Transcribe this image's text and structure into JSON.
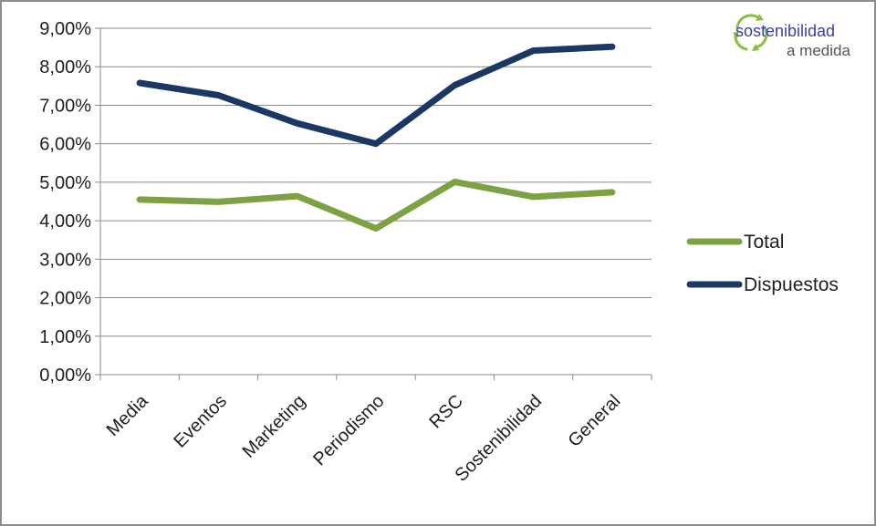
{
  "chart_data": {
    "type": "line",
    "title": "",
    "xlabel": "",
    "ylabel": "",
    "categories": [
      "Media",
      "Eventos",
      "Marketing",
      "Periodismo",
      "RSC",
      "Sostenibilidad",
      "General"
    ],
    "ylim": [
      0,
      0.09
    ],
    "yticks": [
      0,
      0.01,
      0.02,
      0.03,
      0.04,
      0.05,
      0.06,
      0.07,
      0.08,
      0.09
    ],
    "ytick_labels": [
      "0,00%",
      "1,00%",
      "2,00%",
      "3,00%",
      "4,00%",
      "5,00%",
      "6,00%",
      "7,00%",
      "8,00%",
      "9,00%"
    ],
    "grid": true,
    "legend_position": "right",
    "series": [
      {
        "name": "Total",
        "color": "#7da244",
        "values": [
          0.0455,
          0.0449,
          0.0464,
          0.038,
          0.0501,
          0.0462,
          0.0474
        ]
      },
      {
        "name": "Dispuestos",
        "color": "#1b3763",
        "values": [
          0.0758,
          0.0726,
          0.0653,
          0.06,
          0.0752,
          0.0842,
          0.0852
        ]
      }
    ]
  },
  "logo": {
    "line1": "sostenibilidad",
    "line2": "a medida",
    "icon": "recycle-arrows-icon",
    "colors": {
      "text": "#3b3fa8",
      "arrows": "#8cbf3f"
    }
  }
}
